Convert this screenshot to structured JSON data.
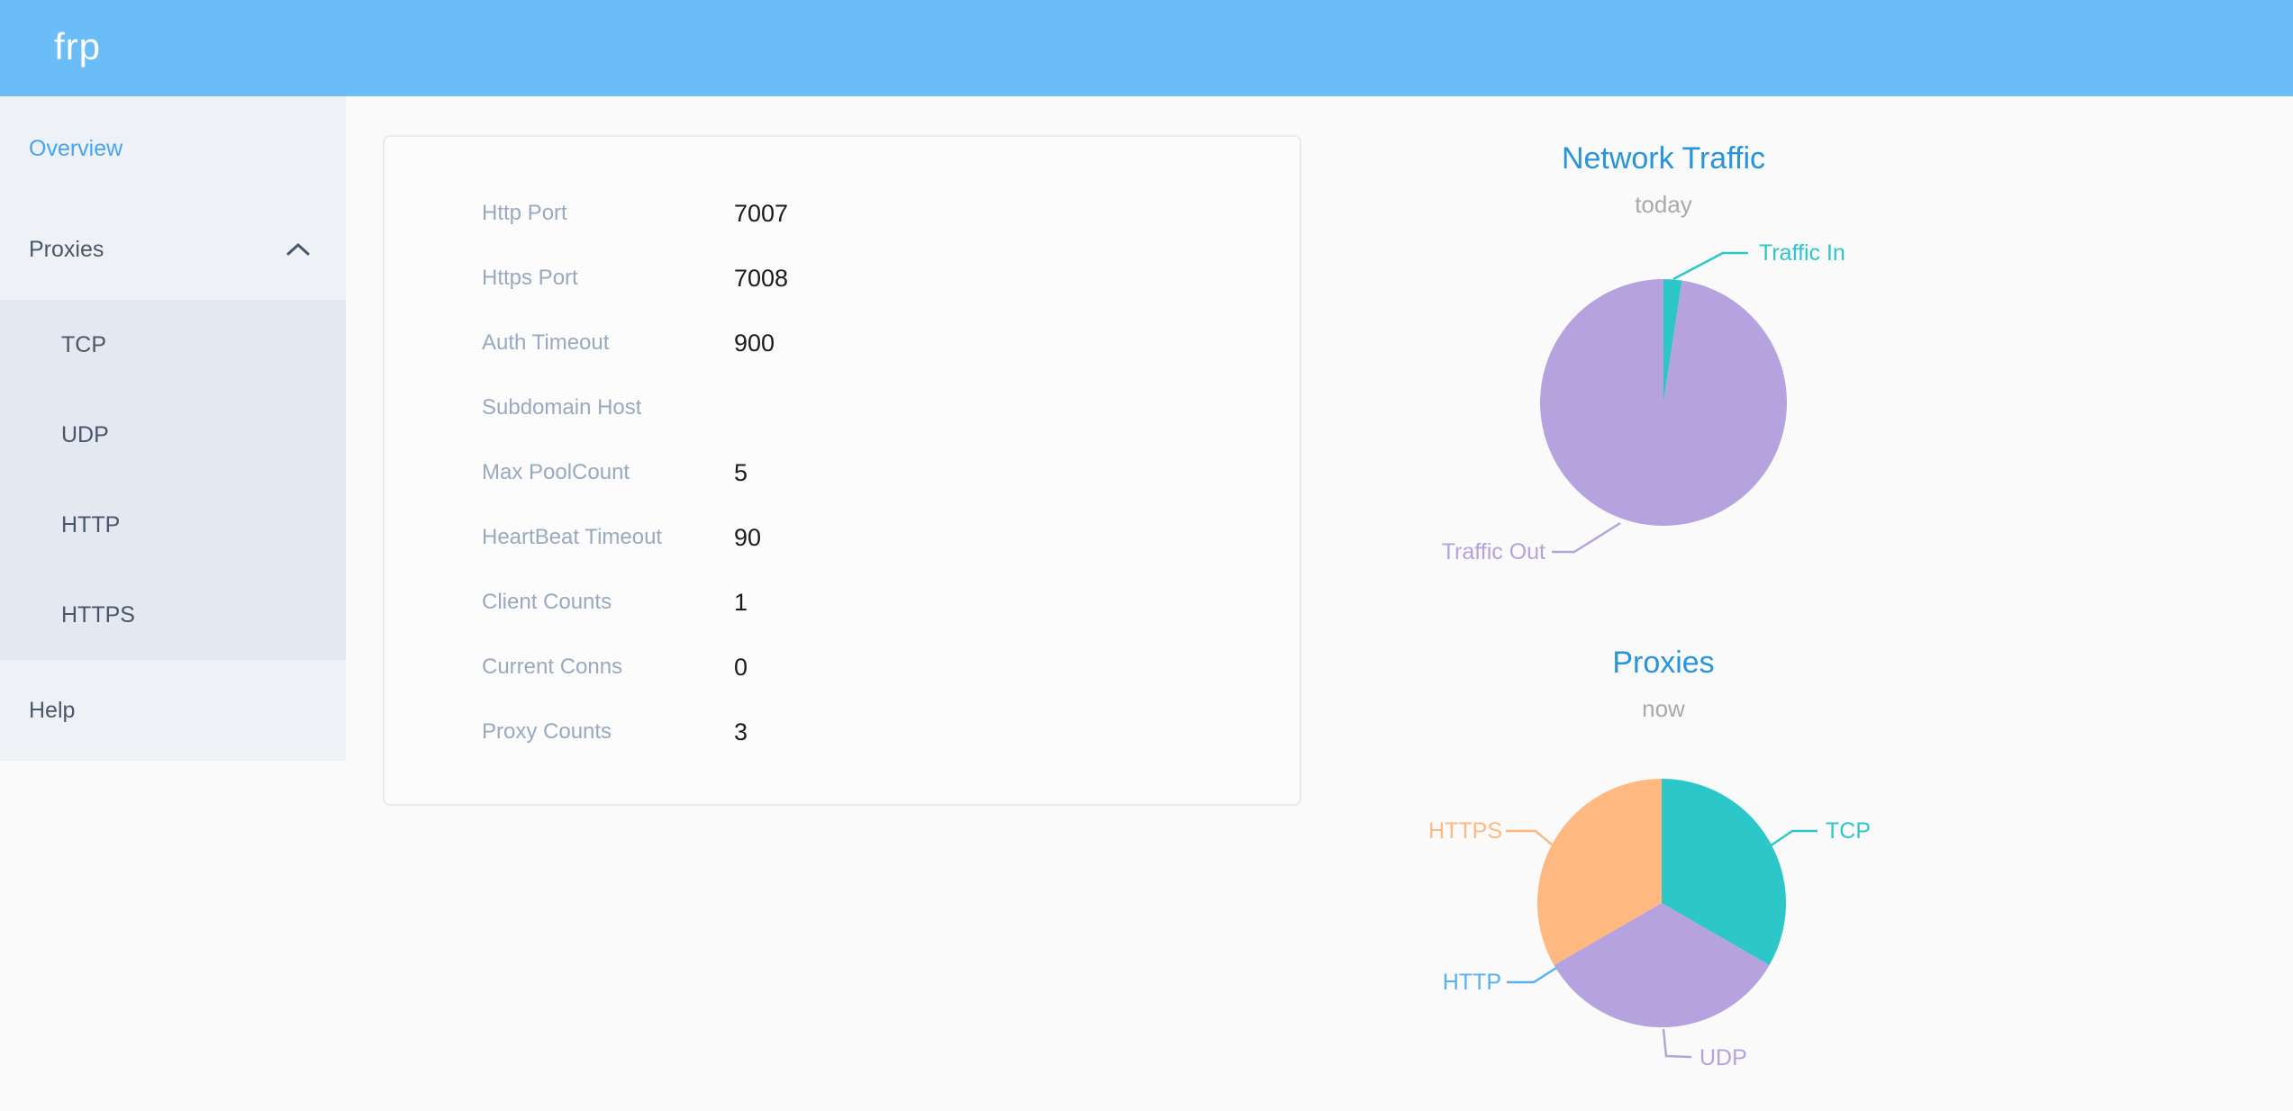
{
  "header": {
    "logo": "frp",
    "background_color": "#6abdf7"
  },
  "sidebar": {
    "text_color": "#48576a",
    "active_color": "#46a5f2",
    "items": [
      {
        "label": "Overview",
        "active": true
      },
      {
        "label": "Proxies",
        "expanded": true
      },
      {
        "label": "TCP"
      },
      {
        "label": "UDP"
      },
      {
        "label": "HTTP"
      },
      {
        "label": "HTTPS"
      },
      {
        "label": "Help"
      }
    ]
  },
  "card": {
    "rows": [
      {
        "label": "Http Port",
        "value": "7007"
      },
      {
        "label": "Https Port",
        "value": "7008"
      },
      {
        "label": "Auth Timeout",
        "value": "900"
      },
      {
        "label": "Subdomain Host",
        "value": ""
      },
      {
        "label": "Max PoolCount",
        "value": "5"
      },
      {
        "label": "HeartBeat Timeout",
        "value": "90"
      },
      {
        "label": "Client Counts",
        "value": "1"
      },
      {
        "label": "Current Conns",
        "value": "0"
      },
      {
        "label": "Proxy Counts",
        "value": "3"
      }
    ]
  },
  "chart_data": [
    {
      "type": "pie",
      "title": "Network Traffic",
      "subtitle": "today",
      "legend_position": "callout-labels",
      "values_are": "percent of pie, estimated from slice angles",
      "series": [
        {
          "name": "Traffic In",
          "value": 2.4,
          "color": "#2ec7c9"
        },
        {
          "name": "Traffic Out",
          "value": 97.6,
          "color": "#b6a2de"
        }
      ]
    },
    {
      "type": "pie",
      "title": "Proxies",
      "subtitle": "now",
      "legend_position": "callout-labels",
      "values_are": "proxy counts (total shown in card as Proxy Counts = 3)",
      "series": [
        {
          "name": "TCP",
          "value": 1,
          "color": "#2ec7c9"
        },
        {
          "name": "UDP",
          "value": 1,
          "color": "#b6a2de"
        },
        {
          "name": "HTTP",
          "value": 0,
          "color": "#5ab1ef"
        },
        {
          "name": "HTTPS",
          "value": 1,
          "color": "#ffb980"
        }
      ]
    }
  ]
}
